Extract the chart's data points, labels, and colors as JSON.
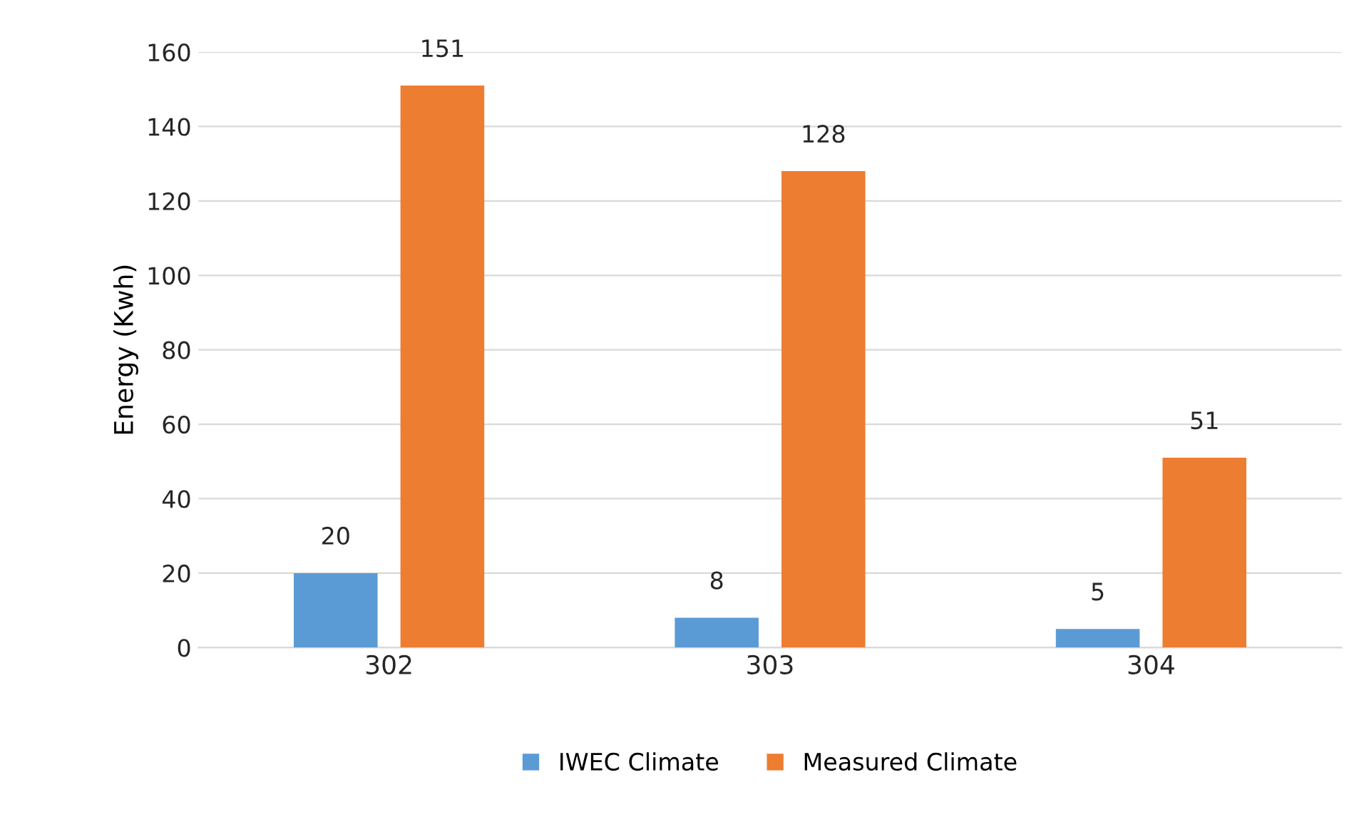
{
  "chart_data": {
    "type": "bar",
    "ylabel": "Energy (Kwh)",
    "categories": [
      "302",
      "303",
      "304"
    ],
    "series": [
      {
        "name": "IWEC Climate",
        "color": "#5b9bd5",
        "values": [
          20,
          8,
          5
        ]
      },
      {
        "name": "Measured Climate",
        "color": "#ed7d31",
        "values": [
          151,
          128,
          51
        ]
      }
    ],
    "ylim": [
      0,
      160
    ],
    "yticks": [
      0,
      20,
      40,
      60,
      80,
      100,
      120,
      140,
      160
    ],
    "grid": "y",
    "legend": "bottom",
    "data_labels": true
  }
}
